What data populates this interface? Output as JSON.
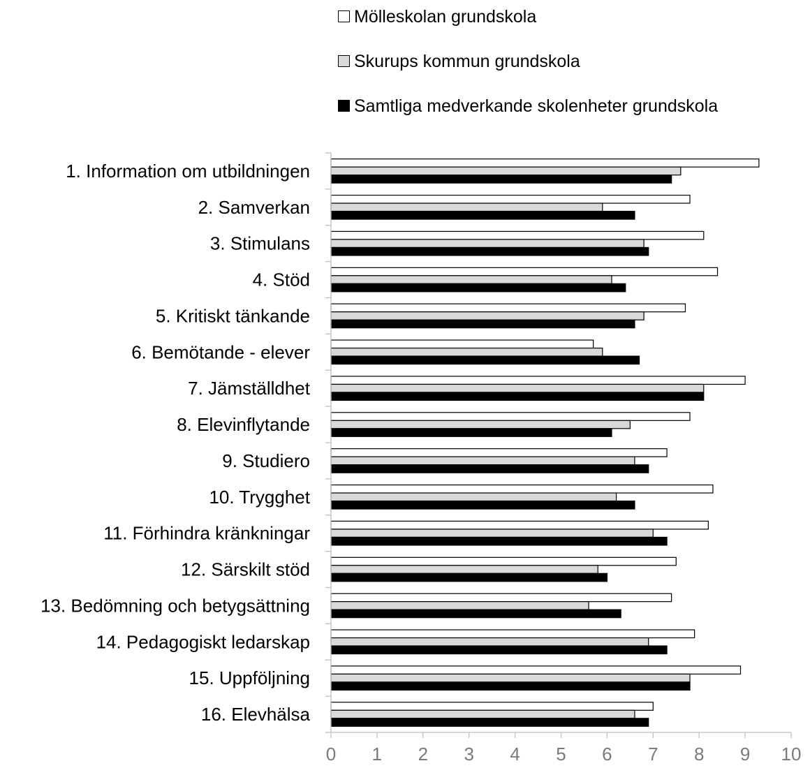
{
  "chart_data": {
    "type": "bar",
    "orientation": "horizontal",
    "title": "",
    "xlabel": "",
    "ylabel": "",
    "xlim": [
      0,
      10
    ],
    "x_ticks": [
      "0",
      "1",
      "2",
      "3",
      "4",
      "5",
      "6",
      "7",
      "8",
      "9",
      "10"
    ],
    "grid": false,
    "legend_position": "top",
    "categories": [
      "1. Information om utbildningen",
      "2. Samverkan",
      "3. Stimulans",
      "4. Stöd",
      "5. Kritiskt tänkande",
      "6. Bemötande - elever",
      "7. Jämställdhet",
      "8. Elevinflytande",
      "9. Studiero",
      "10. Trygghet",
      "11. Förhindra kränkningar",
      "12. Särskilt stöd",
      "13. Bedömning och betygsättning",
      "14. Pedagogiskt ledarskap",
      "15. Uppföljning",
      "16. Elevhälsa"
    ],
    "series": [
      {
        "name": "Mölleskolan grundskola",
        "color": "#ffffff",
        "values": [
          9.3,
          7.8,
          8.1,
          8.4,
          7.7,
          5.7,
          9.0,
          7.8,
          7.3,
          8.3,
          8.2,
          7.5,
          7.4,
          7.9,
          8.9,
          7.0
        ]
      },
      {
        "name": "Skurups kommun grundskola",
        "color": "#d9d9d9",
        "values": [
          7.6,
          5.9,
          6.8,
          6.1,
          6.8,
          5.9,
          8.1,
          6.5,
          6.6,
          6.2,
          7.0,
          5.8,
          5.6,
          6.9,
          7.8,
          6.6
        ]
      },
      {
        "name": "Samtliga medverkande skolenheter grundskola",
        "color": "#000000",
        "values": [
          7.4,
          6.6,
          6.9,
          6.4,
          6.6,
          6.7,
          8.1,
          6.1,
          6.9,
          6.6,
          7.3,
          6.0,
          6.3,
          7.3,
          7.8,
          6.9
        ]
      }
    ]
  }
}
